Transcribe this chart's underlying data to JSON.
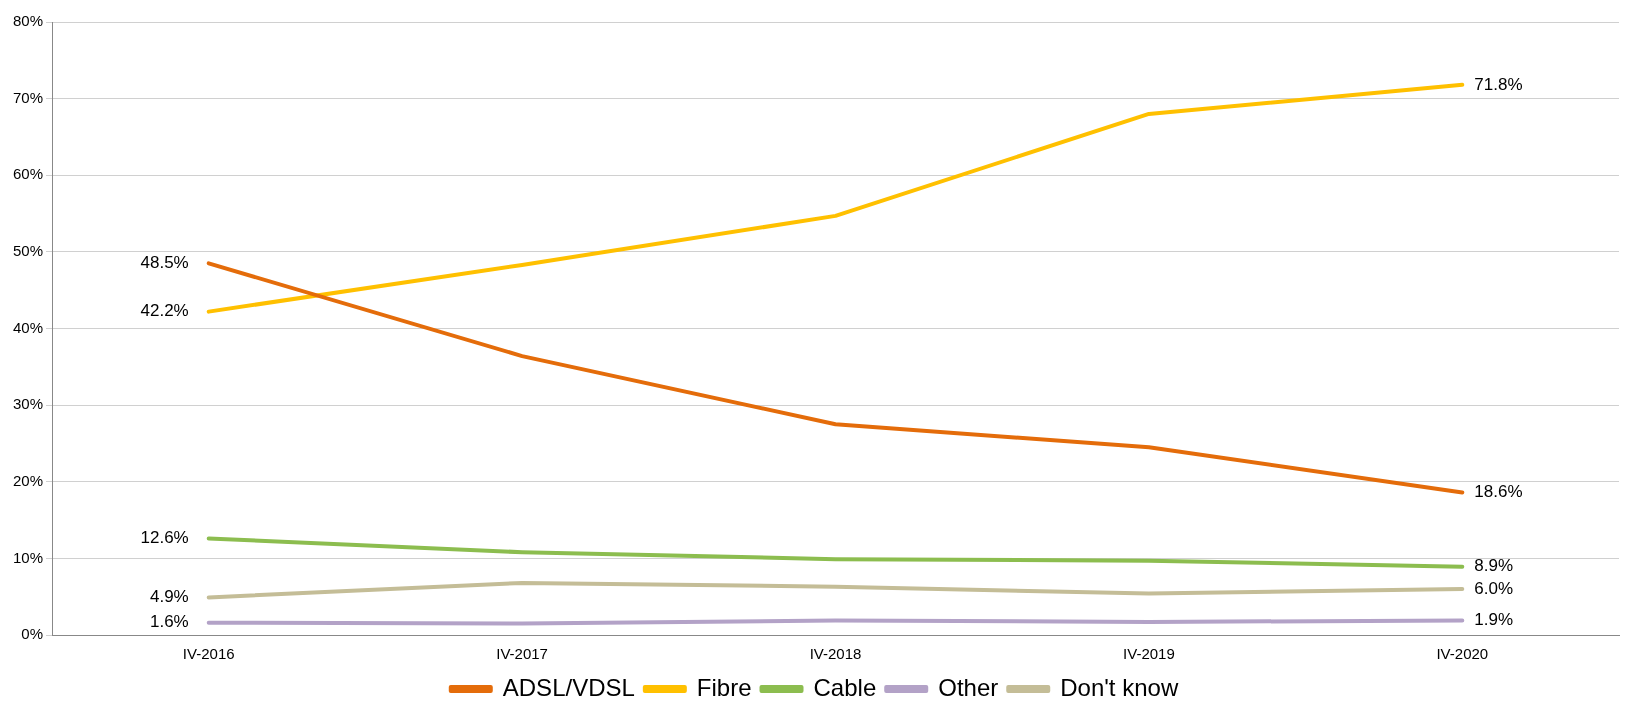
{
  "chart_data": {
    "type": "line",
    "categories": [
      "IV-2016",
      "IV-2017",
      "IV-2018",
      "IV-2019",
      "IV-2020"
    ],
    "series": [
      {
        "name": "ADSL/VDSL",
        "color": "#e46c0a",
        "values": [
          48.5,
          36.4,
          27.5,
          24.5,
          18.6
        ],
        "value_labels": [
          "48.5%",
          null,
          null,
          null,
          "18.6%"
        ]
      },
      {
        "name": "Fibre",
        "color": "#ffc000",
        "values": [
          42.2,
          48.3,
          54.7,
          68.0,
          71.8
        ],
        "value_labels": [
          "42.2%",
          null,
          null,
          null,
          "71.8%"
        ]
      },
      {
        "name": "Cable",
        "color": "#8cbd4f",
        "values": [
          12.6,
          10.8,
          9.9,
          9.7,
          8.9
        ],
        "value_labels": [
          "12.6%",
          null,
          null,
          null,
          "8.9%"
        ]
      },
      {
        "name": "Other",
        "color": "#b3a2c7",
        "values": [
          1.6,
          1.5,
          1.9,
          1.7,
          1.9
        ],
        "value_labels": [
          "1.6%",
          null,
          null,
          null,
          "1.9%"
        ]
      },
      {
        "name": "Don't know",
        "color": "#c4bd97",
        "values": [
          4.9,
          6.8,
          6.3,
          5.4,
          6.0
        ],
        "value_labels": [
          "4.9%",
          null,
          null,
          null,
          "6.0%"
        ]
      }
    ],
    "ylim": [
      0,
      80
    ],
    "yticks": [
      {
        "value": 0,
        "label": "0%"
      },
      {
        "value": 10,
        "label": "10%"
      },
      {
        "value": 20,
        "label": "20%"
      },
      {
        "value": 30,
        "label": "30%"
      },
      {
        "value": 40,
        "label": "40%"
      },
      {
        "value": 50,
        "label": "50%"
      },
      {
        "value": 60,
        "label": "60%"
      },
      {
        "value": 70,
        "label": "70%"
      },
      {
        "value": 80,
        "label": "80%"
      }
    ],
    "grid": "y",
    "legend": "bottom",
    "marker": "none",
    "line_style": "solid"
  }
}
